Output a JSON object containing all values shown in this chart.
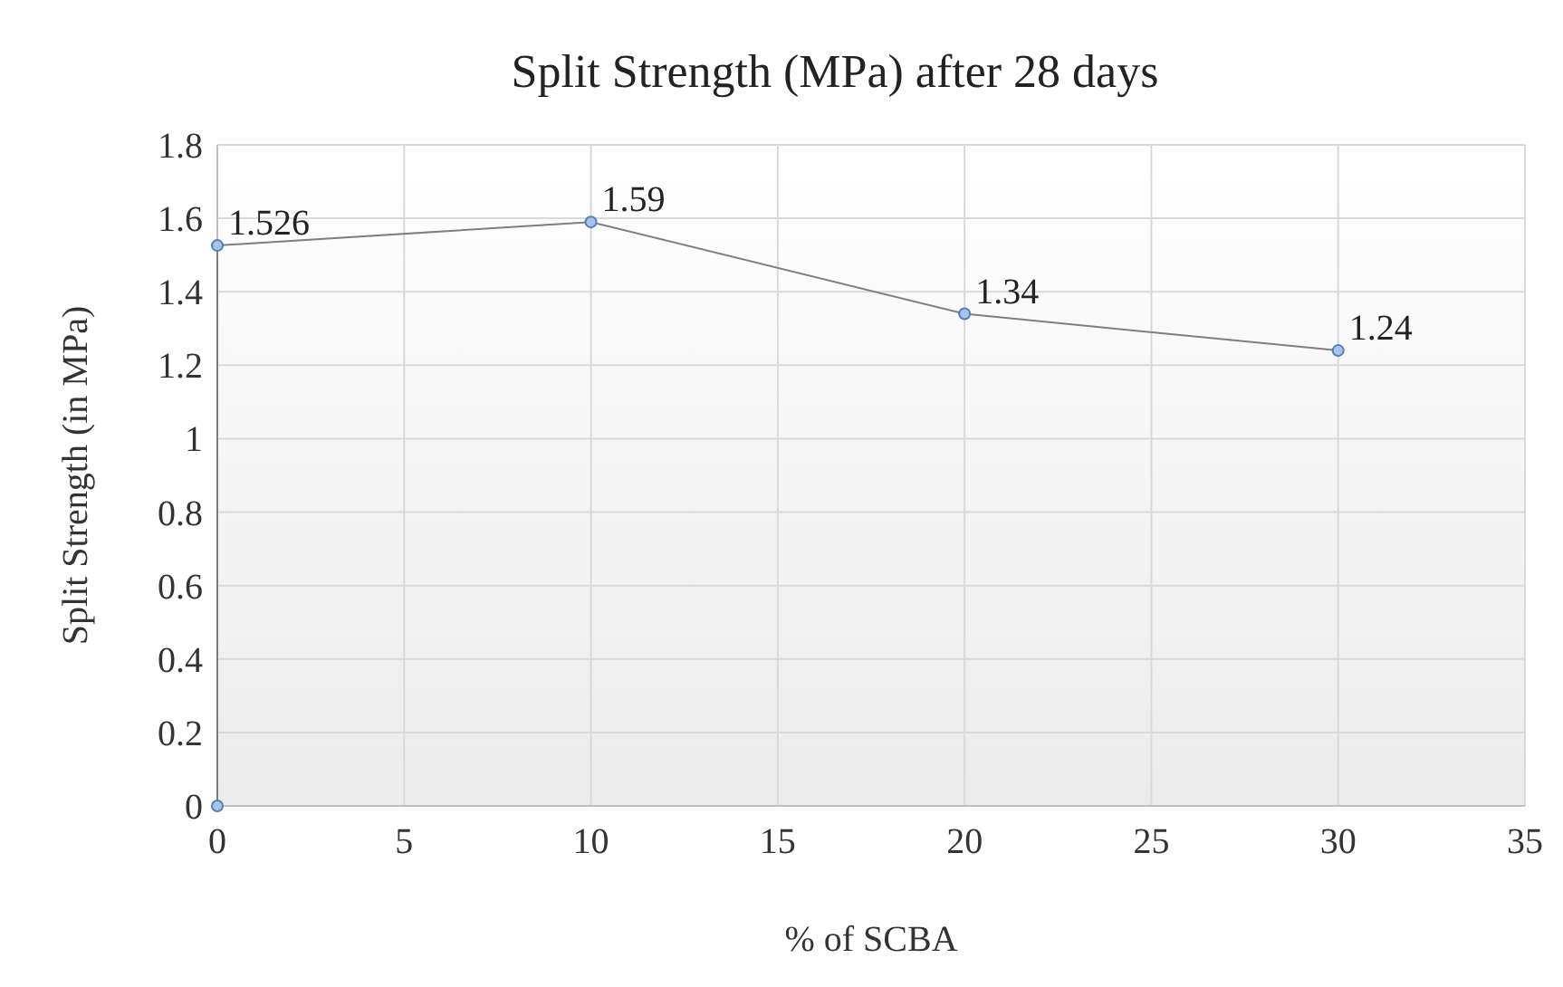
{
  "chart_data": {
    "type": "line",
    "title": "Split Strength (MPa) after 28 days",
    "xlabel": "% of SCBA",
    "ylabel": "Split Strength (in MPa)",
    "x": [
      0,
      0,
      10,
      20,
      30
    ],
    "series": [
      {
        "color": "#7f7f7f",
        "values": [
          0,
          1.526,
          1.59,
          1.34,
          1.24
        ],
        "value_labels": [
          null,
          "1.526",
          "1.59",
          "1.34",
          "1.24"
        ]
      }
    ],
    "xlim": [
      0,
      35
    ],
    "xticks": [
      0,
      5,
      10,
      15,
      20,
      25,
      30,
      35
    ],
    "ylim": [
      0,
      1.8
    ],
    "yticks": [
      0,
      0.2,
      0.4,
      0.6,
      0.8,
      1,
      1.2,
      1.4,
      1.6,
      1.8
    ],
    "grid": true,
    "marker": "circle",
    "line_style": "solid"
  }
}
